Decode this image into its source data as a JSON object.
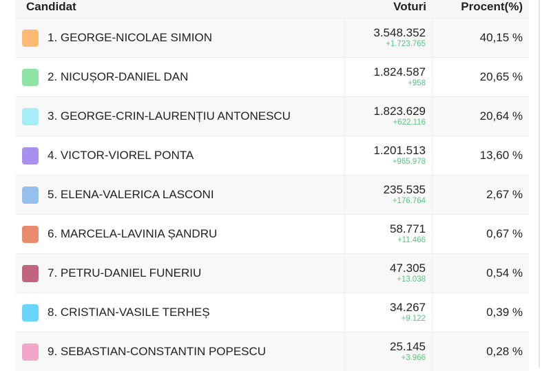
{
  "header": {
    "candidate": "Candidat",
    "votes": "Voturi",
    "percent": "Procent(%)"
  },
  "candidates": [
    {
      "name": "1. GEORGE-NICOLAE SIMION",
      "votes": "3.548.352",
      "delta": "+1.723.765",
      "percent": "40,15 %",
      "color": "#fdba74"
    },
    {
      "name": "2. NICUȘOR-DANIEL DAN",
      "votes": "1.824.587",
      "delta": "+958",
      "percent": "20,65 %",
      "color": "#8ee3a5"
    },
    {
      "name": "3. GEORGE-CRIN-LAURENȚIU ANTONESCU",
      "votes": "1.823.629",
      "delta": "+622.116",
      "percent": "20,64 %",
      "color": "#a5eef8"
    },
    {
      "name": "4. VICTOR-VIOREL PONTA",
      "votes": "1.201.513",
      "delta": "+965.978",
      "percent": "13,60 %",
      "color": "#a990ee"
    },
    {
      "name": "5. ELENA-VALERICA LASCONI",
      "votes": "235.535",
      "delta": "+176.764",
      "percent": "2,67 %",
      "color": "#93c0ec"
    },
    {
      "name": "6. MARCELA-LAVINIA ȘANDRU",
      "votes": "58.771",
      "delta": "+11.466",
      "percent": "0,67 %",
      "color": "#e88a6c"
    },
    {
      "name": "7. PETRU-DANIEL FUNERIU",
      "votes": "47.305",
      "delta": "+13.038",
      "percent": "0,54 %",
      "color": "#c2637f"
    },
    {
      "name": "8. CRISTIAN-VASILE TERHEȘ",
      "votes": "34.267",
      "delta": "+9.122",
      "percent": "0,39 %",
      "color": "#6ad6fb"
    },
    {
      "name": "9. SEBASTIAN-CONSTANTIN POPESCU",
      "votes": "25.145",
      "delta": "+3.966",
      "percent": "0,28 %",
      "color": "#f2a6c9"
    }
  ]
}
